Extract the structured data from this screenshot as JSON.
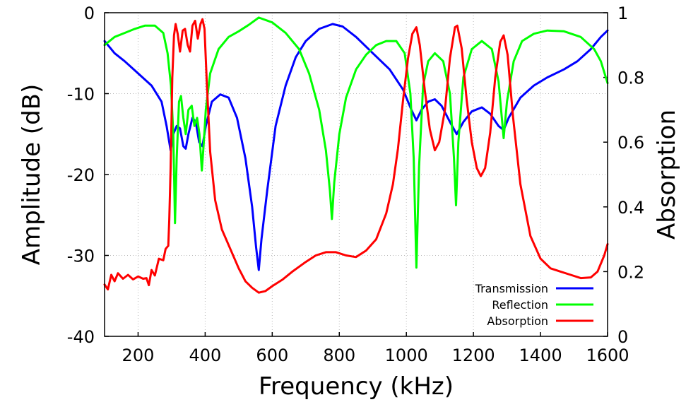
{
  "chart_data": {
    "type": "line",
    "xlabel": "Frequency (kHz)",
    "ylabel": "Amplitude (dB)",
    "y2label": "Absorption",
    "xlim": [
      100,
      1600
    ],
    "ylim": [
      -40,
      0
    ],
    "y2lim": [
      0,
      1
    ],
    "xticks": [
      200,
      400,
      600,
      800,
      1000,
      1200,
      1400,
      1600
    ],
    "yticks": [
      0,
      -10,
      -20,
      -30,
      -40
    ],
    "y2ticks": [
      "0",
      "0.2",
      "0.4",
      "0.6",
      "0.8",
      "1"
    ],
    "y2tick_values": [
      0,
      0.2,
      0.4,
      0.6,
      0.8,
      1
    ],
    "grid": true,
    "legend_position": "bottom-right",
    "series": [
      {
        "name": "Transmission",
        "axis": "left",
        "color": "#0000ff",
        "points": [
          [
            100,
            -3.5
          ],
          [
            130,
            -5
          ],
          [
            160,
            -6
          ],
          [
            200,
            -7.5
          ],
          [
            240,
            -9
          ],
          [
            270,
            -11
          ],
          [
            285,
            -14
          ],
          [
            297,
            -17
          ],
          [
            305,
            -15
          ],
          [
            315,
            -14
          ],
          [
            325,
            -14.3
          ],
          [
            335,
            -16.5
          ],
          [
            342,
            -16.8
          ],
          [
            350,
            -15
          ],
          [
            362,
            -13
          ],
          [
            372,
            -13.5
          ],
          [
            382,
            -16
          ],
          [
            392,
            -16.5
          ],
          [
            402,
            -14
          ],
          [
            420,
            -11
          ],
          [
            445,
            -10.1
          ],
          [
            470,
            -10.5
          ],
          [
            495,
            -13
          ],
          [
            520,
            -18
          ],
          [
            540,
            -24
          ],
          [
            552,
            -29
          ],
          [
            560,
            -31.8
          ],
          [
            568,
            -28
          ],
          [
            585,
            -22
          ],
          [
            610,
            -14
          ],
          [
            640,
            -9
          ],
          [
            670,
            -5.5
          ],
          [
            700,
            -3.5
          ],
          [
            740,
            -2
          ],
          [
            780,
            -1.4
          ],
          [
            810,
            -1.7
          ],
          [
            850,
            -3
          ],
          [
            900,
            -5
          ],
          [
            950,
            -7
          ],
          [
            990,
            -9.5
          ],
          [
            1015,
            -12
          ],
          [
            1030,
            -13.3
          ],
          [
            1045,
            -12
          ],
          [
            1065,
            -11
          ],
          [
            1085,
            -10.7
          ],
          [
            1105,
            -11.5
          ],
          [
            1130,
            -13.5
          ],
          [
            1150,
            -15
          ],
          [
            1170,
            -13.5
          ],
          [
            1195,
            -12.2
          ],
          [
            1225,
            -11.7
          ],
          [
            1250,
            -12.5
          ],
          [
            1275,
            -14
          ],
          [
            1290,
            -14.5
          ],
          [
            1305,
            -13
          ],
          [
            1340,
            -10.5
          ],
          [
            1380,
            -9
          ],
          [
            1420,
            -8
          ],
          [
            1470,
            -7
          ],
          [
            1510,
            -6
          ],
          [
            1550,
            -4.5
          ],
          [
            1580,
            -3
          ],
          [
            1600,
            -2.2
          ]
        ]
      },
      {
        "name": "Reflection",
        "axis": "left",
        "color": "#00ff00",
        "points": [
          [
            100,
            -4
          ],
          [
            130,
            -3
          ],
          [
            160,
            -2.5
          ],
          [
            190,
            -2
          ],
          [
            220,
            -1.6
          ],
          [
            250,
            -1.6
          ],
          [
            275,
            -2.5
          ],
          [
            288,
            -5
          ],
          [
            298,
            -9
          ],
          [
            305,
            -15
          ],
          [
            310,
            -26
          ],
          [
            315,
            -18
          ],
          [
            322,
            -11
          ],
          [
            328,
            -10.3
          ],
          [
            335,
            -13
          ],
          [
            342,
            -15
          ],
          [
            350,
            -12
          ],
          [
            360,
            -11.5
          ],
          [
            368,
            -14
          ],
          [
            376,
            -13
          ],
          [
            383,
            -15
          ],
          [
            390,
            -19.5
          ],
          [
            396,
            -16
          ],
          [
            402,
            -12
          ],
          [
            415,
            -7.5
          ],
          [
            440,
            -4.5
          ],
          [
            470,
            -3
          ],
          [
            500,
            -2.3
          ],
          [
            530,
            -1.5
          ],
          [
            560,
            -0.6
          ],
          [
            600,
            -1.2
          ],
          [
            640,
            -2.5
          ],
          [
            680,
            -4.5
          ],
          [
            710,
            -7.5
          ],
          [
            740,
            -12
          ],
          [
            760,
            -17
          ],
          [
            772,
            -22
          ],
          [
            778,
            -25.5
          ],
          [
            785,
            -21
          ],
          [
            800,
            -15
          ],
          [
            820,
            -10.5
          ],
          [
            850,
            -7
          ],
          [
            880,
            -5.2
          ],
          [
            910,
            -4
          ],
          [
            940,
            -3.5
          ],
          [
            970,
            -3.5
          ],
          [
            995,
            -5
          ],
          [
            1012,
            -10
          ],
          [
            1022,
            -18
          ],
          [
            1030,
            -31.5
          ],
          [
            1038,
            -19
          ],
          [
            1050,
            -9
          ],
          [
            1065,
            -6
          ],
          [
            1085,
            -5
          ],
          [
            1110,
            -6
          ],
          [
            1130,
            -10
          ],
          [
            1142,
            -18
          ],
          [
            1148,
            -23.8
          ],
          [
            1155,
            -16
          ],
          [
            1170,
            -8
          ],
          [
            1195,
            -4.5
          ],
          [
            1225,
            -3.5
          ],
          [
            1255,
            -4.5
          ],
          [
            1275,
            -8.5
          ],
          [
            1290,
            -15.5
          ],
          [
            1300,
            -11
          ],
          [
            1320,
            -6
          ],
          [
            1345,
            -3.5
          ],
          [
            1380,
            -2.6
          ],
          [
            1420,
            -2.2
          ],
          [
            1470,
            -2.3
          ],
          [
            1520,
            -3
          ],
          [
            1560,
            -4.5
          ],
          [
            1580,
            -6
          ],
          [
            1600,
            -8.7
          ]
        ]
      },
      {
        "name": "Absorption",
        "axis": "right",
        "color": "#ff0000",
        "points": [
          [
            100,
            0.16
          ],
          [
            110,
            0.145
          ],
          [
            120,
            0.19
          ],
          [
            130,
            0.17
          ],
          [
            140,
            0.195
          ],
          [
            155,
            0.178
          ],
          [
            170,
            0.19
          ],
          [
            185,
            0.176
          ],
          [
            200,
            0.185
          ],
          [
            215,
            0.178
          ],
          [
            225,
            0.18
          ],
          [
            232,
            0.158
          ],
          [
            240,
            0.205
          ],
          [
            250,
            0.188
          ],
          [
            262,
            0.24
          ],
          [
            275,
            0.235
          ],
          [
            282,
            0.27
          ],
          [
            290,
            0.28
          ],
          [
            293,
            0.36
          ],
          [
            297,
            0.52
          ],
          [
            302,
            0.8
          ],
          [
            307,
            0.93
          ],
          [
            312,
            0.965
          ],
          [
            318,
            0.935
          ],
          [
            325,
            0.88
          ],
          [
            333,
            0.945
          ],
          [
            340,
            0.95
          ],
          [
            348,
            0.9
          ],
          [
            355,
            0.88
          ],
          [
            362,
            0.96
          ],
          [
            370,
            0.975
          ],
          [
            378,
            0.92
          ],
          [
            386,
            0.965
          ],
          [
            392,
            0.98
          ],
          [
            398,
            0.95
          ],
          [
            405,
            0.78
          ],
          [
            415,
            0.57
          ],
          [
            430,
            0.42
          ],
          [
            450,
            0.33
          ],
          [
            475,
            0.27
          ],
          [
            500,
            0.21
          ],
          [
            520,
            0.17
          ],
          [
            540,
            0.15
          ],
          [
            560,
            0.135
          ],
          [
            580,
            0.14
          ],
          [
            600,
            0.155
          ],
          [
            630,
            0.175
          ],
          [
            660,
            0.2
          ],
          [
            700,
            0.23
          ],
          [
            730,
            0.25
          ],
          [
            760,
            0.26
          ],
          [
            790,
            0.26
          ],
          [
            820,
            0.25
          ],
          [
            850,
            0.245
          ],
          [
            880,
            0.265
          ],
          [
            910,
            0.3
          ],
          [
            940,
            0.38
          ],
          [
            960,
            0.47
          ],
          [
            975,
            0.58
          ],
          [
            990,
            0.73
          ],
          [
            1005,
            0.86
          ],
          [
            1018,
            0.935
          ],
          [
            1030,
            0.955
          ],
          [
            1040,
            0.9
          ],
          [
            1055,
            0.76
          ],
          [
            1070,
            0.64
          ],
          [
            1085,
            0.575
          ],
          [
            1098,
            0.6
          ],
          [
            1115,
            0.7
          ],
          [
            1130,
            0.86
          ],
          [
            1145,
            0.955
          ],
          [
            1152,
            0.96
          ],
          [
            1165,
            0.89
          ],
          [
            1180,
            0.73
          ],
          [
            1195,
            0.6
          ],
          [
            1210,
            0.52
          ],
          [
            1222,
            0.495
          ],
          [
            1235,
            0.52
          ],
          [
            1250,
            0.63
          ],
          [
            1265,
            0.8
          ],
          [
            1280,
            0.91
          ],
          [
            1290,
            0.93
          ],
          [
            1302,
            0.87
          ],
          [
            1318,
            0.68
          ],
          [
            1340,
            0.47
          ],
          [
            1370,
            0.31
          ],
          [
            1400,
            0.24
          ],
          [
            1430,
            0.21
          ],
          [
            1460,
            0.2
          ],
          [
            1490,
            0.19
          ],
          [
            1520,
            0.18
          ],
          [
            1550,
            0.182
          ],
          [
            1570,
            0.2
          ],
          [
            1590,
            0.25
          ],
          [
            1600,
            0.285
          ]
        ]
      }
    ]
  }
}
